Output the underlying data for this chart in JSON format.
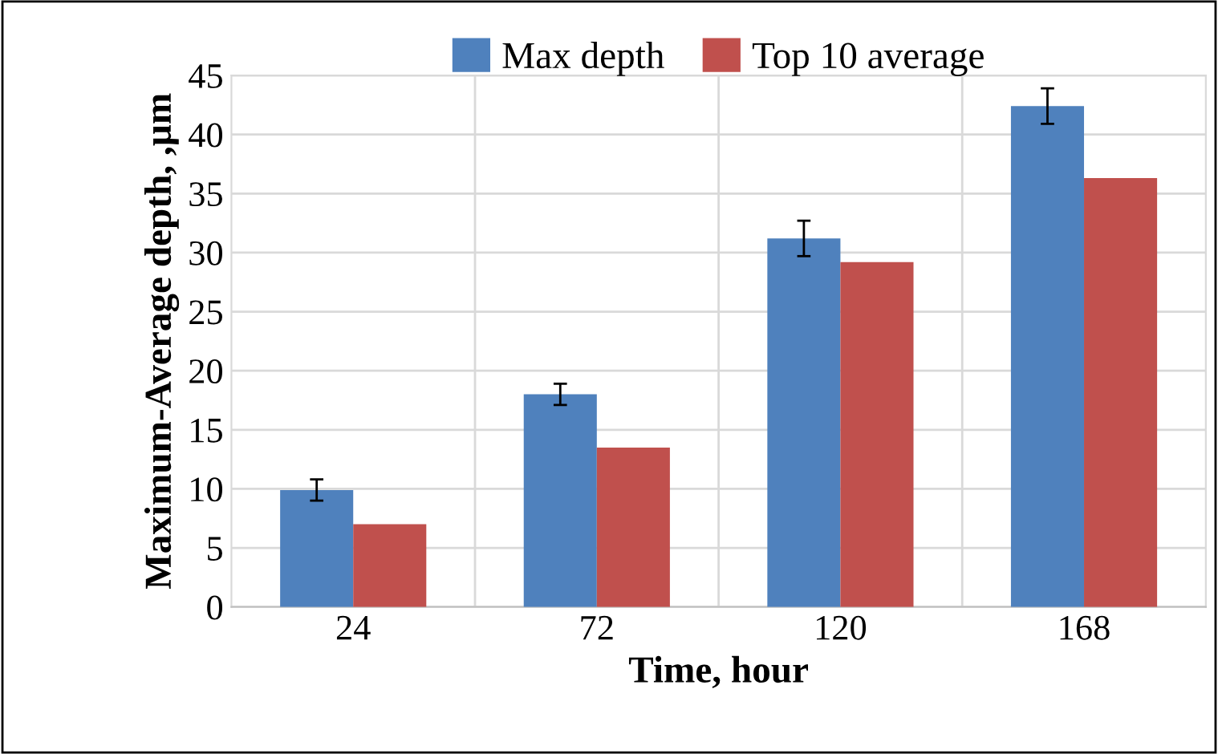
{
  "chart_data": {
    "type": "bar",
    "xlabel": "Time, hour",
    "ylabel": "Maximum-Average depth, ,µm",
    "categories": [
      "24",
      "72",
      "120",
      "168"
    ],
    "series": [
      {
        "name": "Max depth",
        "color": "#4f81bd",
        "values": [
          9.9,
          18.0,
          31.2,
          42.4
        ],
        "errors": [
          0.9,
          0.9,
          1.5,
          1.5
        ]
      },
      {
        "name": "Top 10 average",
        "color": "#c0504d",
        "values": [
          7.0,
          13.5,
          29.2,
          36.3
        ]
      }
    ],
    "ylim": [
      0,
      45
    ],
    "yticks": [
      0,
      5,
      10,
      15,
      20,
      25,
      30,
      35,
      40,
      45
    ],
    "grid": true,
    "legend": "top"
  }
}
